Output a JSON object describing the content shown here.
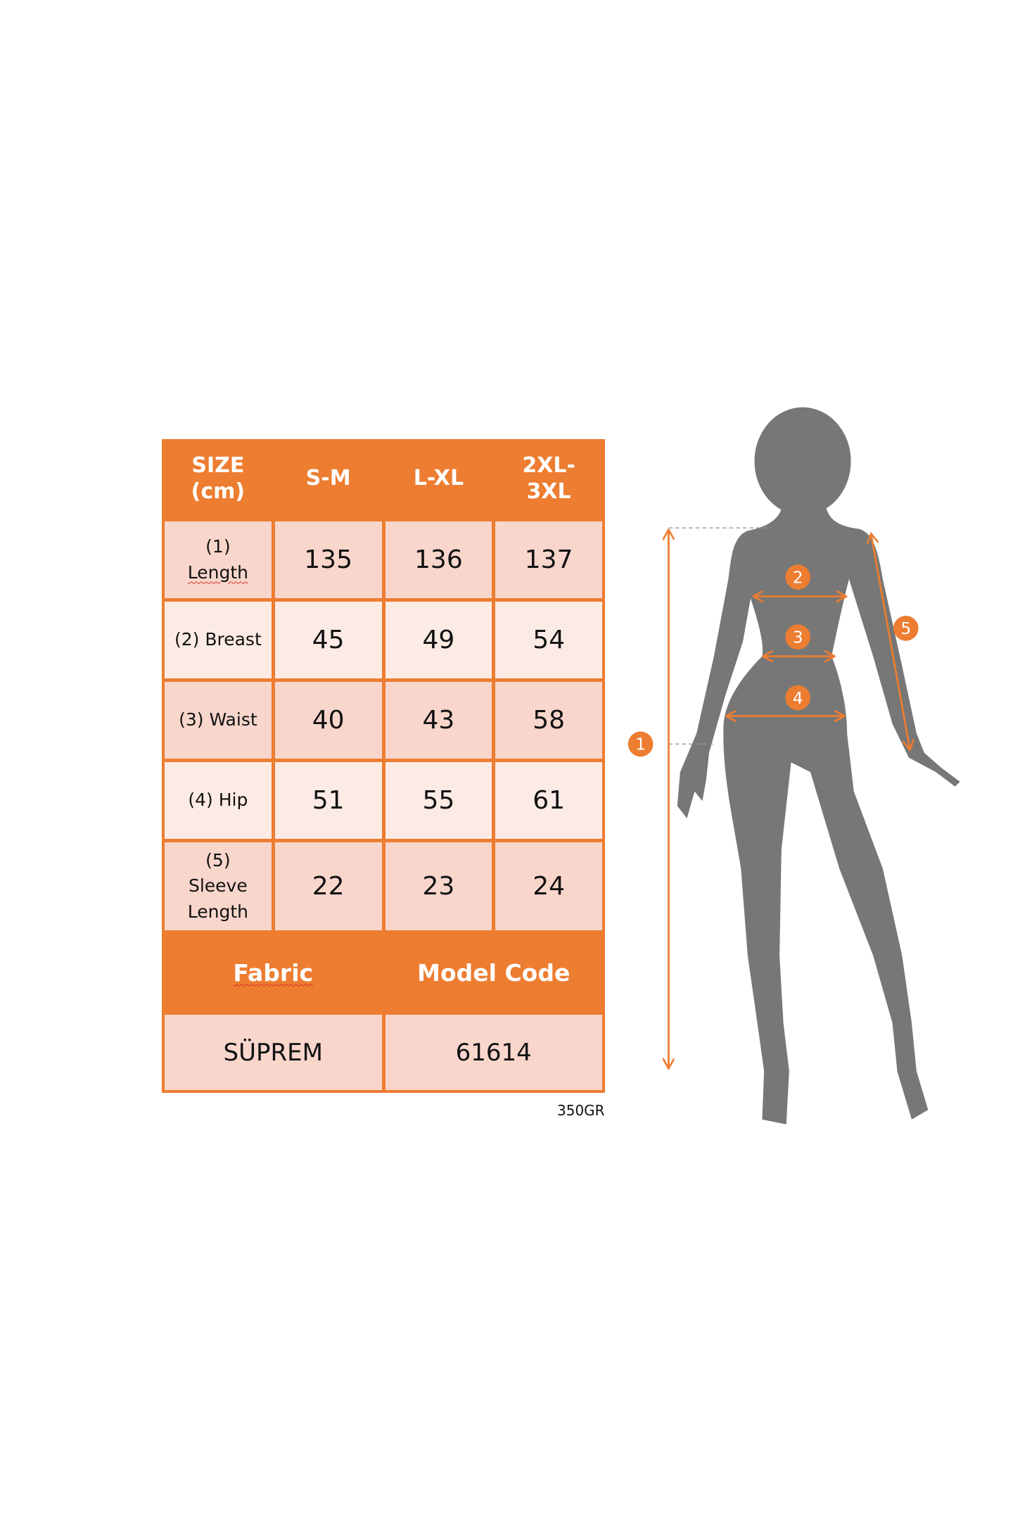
{
  "size_table": {
    "header": {
      "size_label_line1": "SIZE",
      "size_label_line2": "(cm)",
      "columns": [
        "S-M",
        "L-XL",
        "2XL-",
        "3XL"
      ]
    },
    "rows": [
      {
        "label_line1": "(1)",
        "label_line2": "Length",
        "values": [
          "135",
          "136",
          "137"
        ]
      },
      {
        "label": "(2) Breast",
        "values": [
          "45",
          "49",
          "54"
        ]
      },
      {
        "label": "(3) Waist",
        "values": [
          "40",
          "43",
          "58"
        ]
      },
      {
        "label": "(4) Hip",
        "values": [
          "51",
          "55",
          "61"
        ]
      },
      {
        "label_line1": "(5)",
        "label_line2": "Sleeve",
        "label_line3": "Length",
        "values": [
          "22",
          "23",
          "24"
        ]
      }
    ],
    "footer": {
      "fabric_label": "Fabric",
      "model_code_label": "Model Code",
      "fabric_value": "SÜPREM",
      "model_code_value": "61614"
    },
    "note": "350GR"
  },
  "figure": {
    "markers": [
      "1",
      "2",
      "3",
      "4",
      "5"
    ],
    "colors": {
      "accent": "#ED7D31",
      "silhouette": "#777777"
    }
  }
}
